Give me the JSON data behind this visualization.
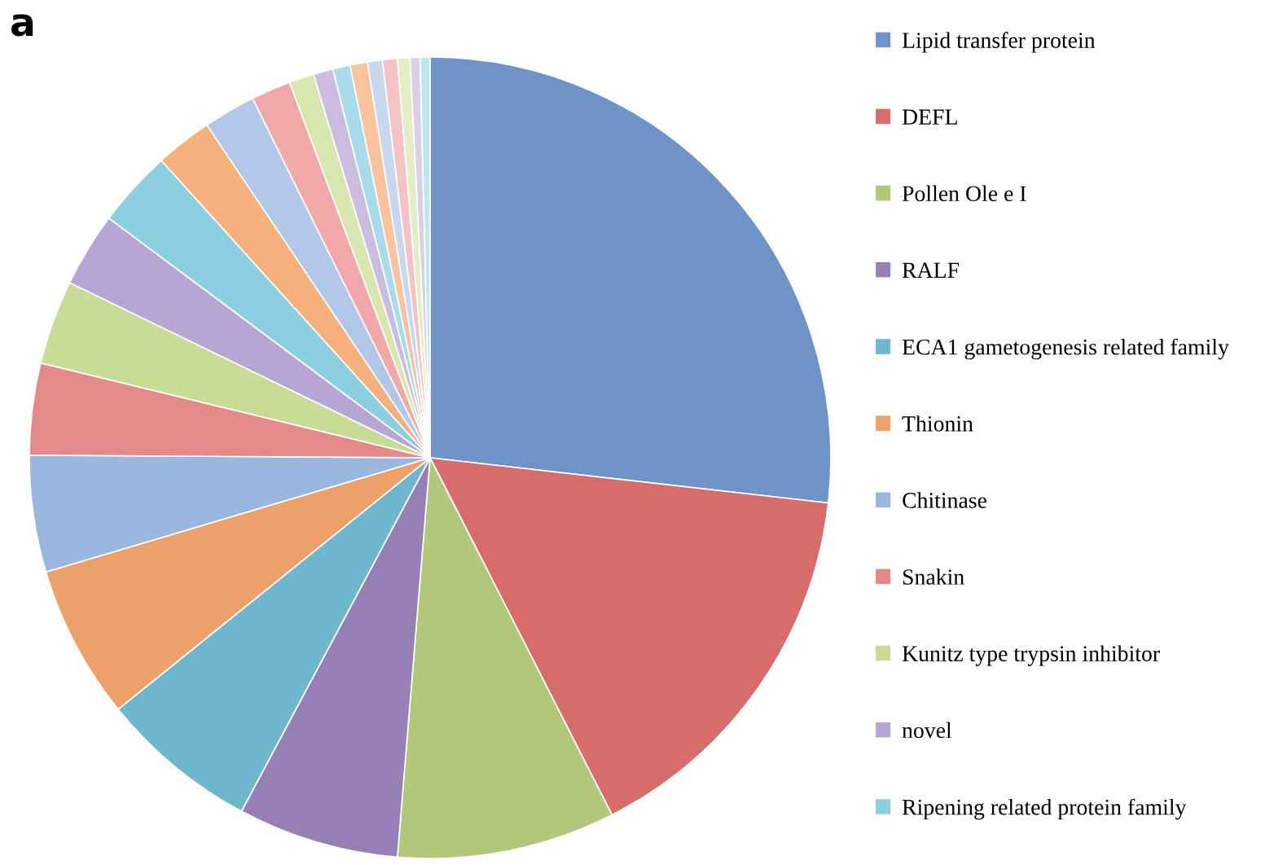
{
  "chart_data": {
    "type": "pie",
    "title": "a",
    "categories": [
      "Lipid transfer protein",
      "DEFL",
      "Pollen Ole e I",
      "RALF",
      "ECA1 gametogenesis related family",
      "Thionin",
      "Chitinase",
      "Snakin",
      "Kunitz type trypsin inhibitor",
      "novel",
      "Ripening related protein family",
      null,
      null,
      null,
      null,
      null,
      null,
      null,
      null,
      null,
      null,
      null,
      null
    ],
    "values": [
      26.8,
      15.7,
      8.8,
      6.5,
      6.4,
      6.2,
      4.7,
      3.7,
      3.4,
      3.0,
      3.1,
      2.3,
      2.1,
      1.6,
      1.0,
      0.8,
      0.7,
      0.7,
      0.6,
      0.6,
      0.5,
      0.4,
      0.4
    ],
    "colors": [
      "#6d93c7",
      "#d66d6b",
      "#b1c77a",
      "#9680b4",
      "#6fb7cc",
      "#eea06a",
      "#9ab7e0",
      "#e58a8a",
      "#c8dc95",
      "#b7a5d3",
      "#8ccfe0",
      "#f5b07e",
      "#b2c8e8",
      "#f0a8a8",
      "#d8e6b0",
      "#cbbde0",
      "#a9dcea",
      "#f8c39d",
      "#c8d8ef",
      "#f4c4c4",
      "#e3edc6",
      "#d9d0e8",
      "#c0e6f0"
    ],
    "legend": "right"
  }
}
